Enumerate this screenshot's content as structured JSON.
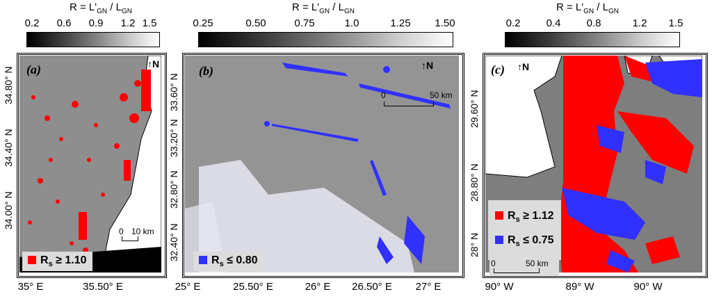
{
  "colors": {
    "red_mask": "#ff0000",
    "blue_mask": "#3030ff",
    "water_gray": "#8e8e8e",
    "land": "#ffffff"
  },
  "panels": [
    {
      "label": "(a)",
      "colorbar": {
        "title_main": "R = L'",
        "title_sub1": "GN",
        "title_mid": " / L",
        "title_sub2": "GN",
        "ticks": [
          "0.2",
          "0.6",
          "0.9",
          "1.2",
          "1.5"
        ]
      },
      "x_ticks": [
        "35° E",
        "35.50° E"
      ],
      "y_ticks": [
        "34.80° N",
        "34.40° N",
        "34.00° N"
      ],
      "north": "N",
      "scale": {
        "left": "0",
        "right": "10 km"
      },
      "legend": {
        "symbol": "R",
        "sub": "s",
        "rel": "≥ 1.10",
        "color": "#ff0000"
      }
    },
    {
      "label": "(b)",
      "colorbar": {
        "title_main": "R = L'",
        "title_sub1": "GN",
        "title_mid": " / L",
        "title_sub2": "GN",
        "ticks": [
          "0.25",
          "0.50",
          "0.75",
          "1.0",
          "1.25",
          "1.50"
        ]
      },
      "x_ticks": [
        "25° E",
        "25.50° E",
        "26° E",
        "26.50° E",
        "27° E"
      ],
      "y_ticks": [
        "33.60° N",
        "33.20° N",
        "32.80° N",
        "32.40° N"
      ],
      "north": "N",
      "scale": {
        "left": "0",
        "right": "50 km"
      },
      "legend": {
        "symbol": "R",
        "sub": "s",
        "rel": "≤ 0.80",
        "color": "#3030ff"
      }
    },
    {
      "label": "(c)",
      "colorbar": {
        "title_main": "R = L'",
        "title_sub1": "GN",
        "title_mid": " / L",
        "title_sub2": "GN",
        "ticks": [
          "0.2",
          "0.4",
          "0.8",
          "1.2",
          "1.5"
        ]
      },
      "x_ticks": [
        "90° W",
        "89° W",
        "90° W"
      ],
      "y_ticks": [
        "29.60° N",
        "28.80° N",
        "28° N"
      ],
      "north": "N",
      "scale": {
        "left": "0",
        "right": "50 km"
      },
      "legend1": {
        "symbol": "R",
        "sub": "s",
        "rel": "≥ 1.12",
        "color": "#ff0000"
      },
      "legend2": {
        "symbol": "R",
        "sub": "s",
        "rel": "≤ 0.75",
        "color": "#3030ff"
      }
    }
  ]
}
